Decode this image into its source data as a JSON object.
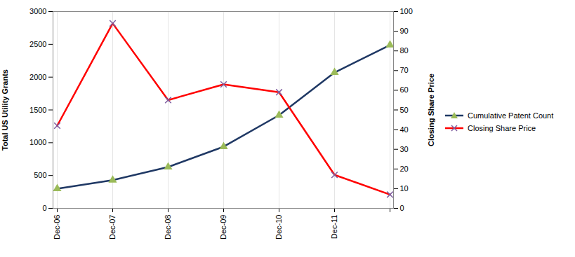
{
  "chart_data": {
    "type": "line",
    "categories": [
      "Dec-06",
      "Dec-07",
      "Dec-08",
      "Dec-09",
      "Dec-10",
      "Dec-11",
      null
    ],
    "ylabel": "Total US Utility Grants",
    "y2label": "Closing Share Price",
    "ylim": [
      0,
      3000
    ],
    "yticks": [
      0,
      500,
      1000,
      1500,
      2000,
      2500,
      3000
    ],
    "y2lim": [
      0,
      100
    ],
    "y2ticks": [
      0,
      10,
      20,
      30,
      40,
      50,
      60,
      70,
      80,
      90,
      100
    ],
    "grid": "x",
    "legend": "right",
    "series": [
      {
        "name": "Cumulative Patent Count",
        "color": "#1F3864",
        "marker": "triangle",
        "values": [
          300,
          430,
          630,
          940,
          1420,
          2070,
          2490
        ]
      },
      {
        "name": "Closing Share Price",
        "color": "#FF0000",
        "marker": "x",
        "axis": "y2",
        "values": [
          42,
          94,
          55,
          63,
          59,
          17,
          7
        ]
      }
    ]
  }
}
